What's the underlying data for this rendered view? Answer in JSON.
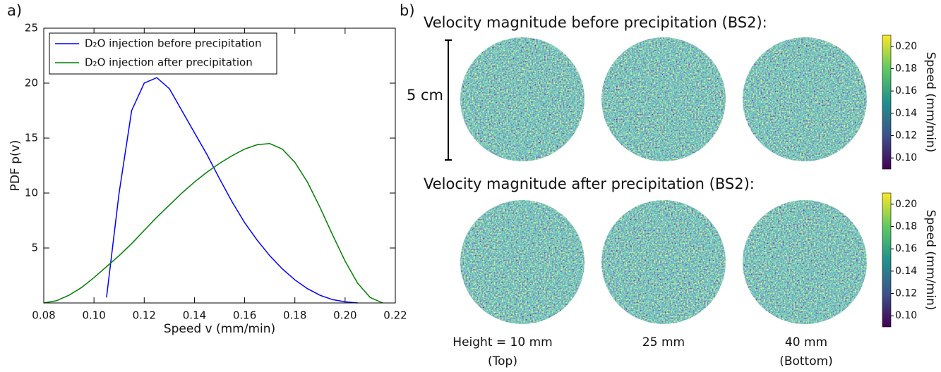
{
  "chart_data": [
    {
      "type": "line",
      "panel_label": "a)",
      "xlabel": "Speed v (mm/min)",
      "ylabel": "PDF p(v)",
      "xlim": [
        0.08,
        0.22
      ],
      "xticks": [
        0.08,
        {
          "value": 0.1,
          "label": "0.10"
        },
        0.12,
        0.14,
        0.16,
        0.18,
        {
          "value": 0.2,
          "label": "0.20"
        },
        0.22
      ],
      "ylim": [
        0,
        25
      ],
      "yticks": [
        5,
        10,
        15,
        20,
        25
      ],
      "legend": "upper left",
      "x": [
        0.08,
        0.085,
        0.09,
        0.095,
        0.1,
        0.105,
        0.11,
        0.115,
        0.12,
        0.125,
        0.13,
        0.135,
        0.14,
        0.145,
        0.15,
        0.155,
        0.16,
        0.165,
        0.17,
        0.175,
        0.18,
        0.185,
        0.19,
        0.195,
        0.2,
        0.205,
        0.21,
        0.215,
        0.22
      ],
      "series": [
        {
          "name": "D₂O injection before precipitation",
          "color": "#0000ff",
          "values": [
            null,
            null,
            null,
            null,
            null,
            0.5,
            10,
            17.5,
            20,
            20.5,
            19.5,
            17.5,
            15.5,
            13.5,
            11.3,
            9.2,
            7.3,
            5.7,
            4.3,
            3.1,
            2.1,
            1.3,
            0.7,
            0.3,
            0.1,
            0,
            null,
            null,
            null
          ]
        },
        {
          "name": "D₂O injection after precipitation",
          "color": "#008000",
          "values": [
            0,
            0.2,
            0.7,
            1.4,
            2.3,
            3.3,
            4.3,
            5.4,
            6.6,
            7.8,
            8.9,
            10,
            11,
            11.9,
            12.7,
            13.4,
            14,
            14.4,
            14.5,
            14,
            12.8,
            11,
            8.7,
            6.2,
            3.8,
            1.8,
            0.5,
            0,
            null
          ]
        }
      ]
    },
    {
      "type": "image-grid",
      "panel_label": "b)",
      "rows": [
        {
          "title": "Velocity magnitude before precipitation (BS2):"
        },
        {
          "title": "Velocity magnitude after precipitation (BS2):"
        }
      ],
      "columns": [
        {
          "label": "Height = 10 mm",
          "sublabel": "(Top)"
        },
        {
          "label": "25 mm"
        },
        {
          "label": "40 mm",
          "sublabel": "(Bottom)"
        }
      ],
      "scale_bar": "5 cm",
      "colorbar": {
        "label": "Speed (mm/min)",
        "lim": [
          0.09,
          0.21
        ],
        "ticks": [
          {
            "value": 0.1,
            "label": "0.10"
          },
          0.12,
          0.14,
          0.16,
          0.18,
          {
            "value": 0.2,
            "label": "0.20"
          }
        ]
      }
    }
  ]
}
